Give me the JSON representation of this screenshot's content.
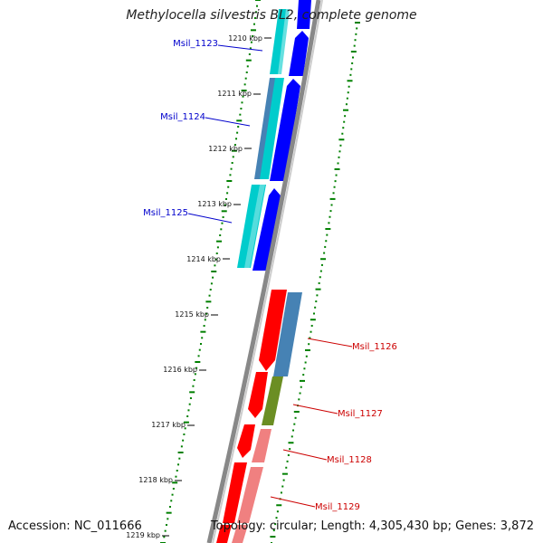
{
  "title": "Methylocella silvestris BL2, complete genome",
  "accession": "Accession: NC_011666",
  "topology": "Topology: circular; Length: 4,305,430 bp; Genes: 3,872",
  "ticks": [
    "1210 kbp",
    "1211 kbp",
    "1212 kbp",
    "1213 kbp",
    "1214 kbp",
    "1215 kbp",
    "1216 kbp",
    "1217 kbp",
    "1218 kbp",
    "1219 kbp"
  ],
  "genes_left": [
    {
      "label": "Msil_1123",
      "color": "#0000cc"
    },
    {
      "label": "Msil_1124",
      "color": "#0000cc"
    },
    {
      "label": "Msil_1125",
      "color": "#0000cc"
    }
  ],
  "genes_right": [
    {
      "label": "Msil_1126",
      "color": "#cc0000"
    },
    {
      "label": "Msil_1127",
      "color": "#cc0000"
    },
    {
      "label": "Msil_1128",
      "color": "#cc0000"
    },
    {
      "label": "Msil_1129",
      "color": "#cc0000"
    }
  ],
  "colors": {
    "forward_gene": "#0000ff",
    "forward_cds": "#00cccc",
    "forward_cds_alt": "#4682b4",
    "reverse_gene": "#ff0000",
    "reverse_cds": "#4682b4",
    "reverse_cds_green": "#6b8e23",
    "reverse_cds_pink": "#f08080",
    "backbone": "#888888",
    "gc_dots": "#008000"
  }
}
